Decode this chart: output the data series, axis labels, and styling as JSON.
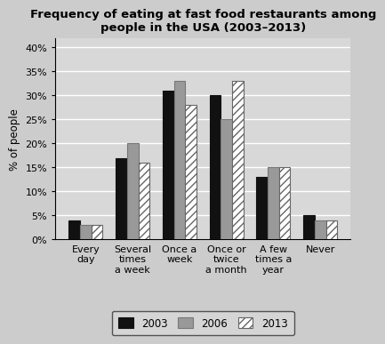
{
  "title": "Frequency of eating at fast food restaurants among\npeople in the USA (2003–2013)",
  "categories": [
    "Every\nday",
    "Several\ntimes\na week",
    "Once a\nweek",
    "Once or\ntwice\na month",
    "A few\ntimes a\nyear",
    "Never"
  ],
  "series": {
    "2003": [
      4,
      17,
      31,
      30,
      13,
      5
    ],
    "2006": [
      3,
      20,
      33,
      25,
      15,
      4
    ],
    "2013": [
      3,
      16,
      28,
      33,
      15,
      4
    ]
  },
  "bar_colors": {
    "2003": "#111111",
    "2006": "#999999",
    "2013": "#ffffff"
  },
  "bar_hatches": {
    "2003": "",
    "2006": "",
    "2013": "////"
  },
  "bar_edgecolors": {
    "2003": "#111111",
    "2006": "#777777",
    "2013": "#666666"
  },
  "ylabel": "% of people",
  "ylim": [
    0,
    42
  ],
  "yticks": [
    0,
    5,
    10,
    15,
    20,
    25,
    30,
    35,
    40
  ],
  "ytick_labels": [
    "0%",
    "5%",
    "10%",
    "15%",
    "20%",
    "25%",
    "30%",
    "35%",
    "40%"
  ],
  "legend_labels": [
    "2003",
    "2006",
    "2013"
  ],
  "title_fontsize": 9.5,
  "axis_fontsize": 8.5,
  "tick_fontsize": 8,
  "legend_fontsize": 8.5,
  "bar_width": 0.24,
  "background_color": "#d8d8d8",
  "plot_bg_color": "#d8d8d8",
  "grid_color": "#ffffff"
}
